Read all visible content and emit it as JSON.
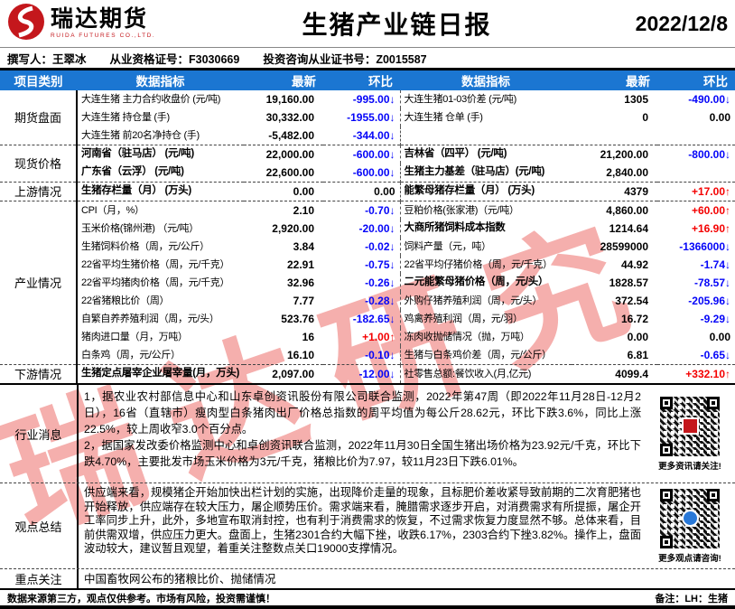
{
  "brand": {
    "name": "瑞达期货",
    "sub": "RUIDA FUTURES CO.,LTD."
  },
  "header": {
    "title": "生猪产业链日报",
    "date": "2022/12/8"
  },
  "author": {
    "writer": "撰写人：王翠冰",
    "cert1": "从业资格证号：F3030669",
    "cert2": "投资咨询从业证书号：Z0015587"
  },
  "watermark": "瑞达研究",
  "colors": {
    "header_blue": "#1B76D2",
    "down_blue": "#0404F8",
    "up_red": "#F40000",
    "brand_red": "#C4171C"
  },
  "table": {
    "headers": {
      "category": "项目类别",
      "indicator": "数据指标",
      "latest": "最新",
      "change": "环比"
    },
    "rows": [
      {
        "cat": {
          "label": "期货盘面",
          "span": 3
        },
        "l": {
          "ind": "大连生猪 主力合约收盘价 (元/吨)",
          "v": "19,160.00",
          "c": "-995.00↓",
          "d": "down"
        },
        "r": {
          "ind": "大连生猪01-03价差 (元/吨)",
          "v": "1305",
          "c": "-490.00↓",
          "d": "down"
        }
      },
      {
        "l": {
          "ind": "大连生猪 持仓量 (手)",
          "v": "30,332.00",
          "c": "-1955.00↓",
          "d": "down"
        },
        "r": {
          "ind": "大连生猪 仓单 (手)",
          "v": "0",
          "c": "0.00",
          "d": "flat"
        }
      },
      {
        "l": {
          "ind": "大连生猪 前20名净持仓 (手)",
          "v": "-5,482.00",
          "c": "-344.00↓",
          "d": "down"
        },
        "r": {
          "ind": "",
          "v": "",
          "c": "",
          "d": "none"
        }
      },
      {
        "cat": {
          "label": "现货价格",
          "span": 2
        },
        "l": {
          "ind": "河南省（驻马店） (元/吨)",
          "v": "22,000.00",
          "c": "-600.00↓",
          "d": "down",
          "b": true
        },
        "r": {
          "ind": "吉林省（四平） (元/吨)",
          "v": "21,200.00",
          "c": "-800.00↓",
          "d": "down",
          "b": true
        }
      },
      {
        "l": {
          "ind": "广东省（云浮） (元/吨)",
          "v": "22,600.00",
          "c": "-600.00↓",
          "d": "down",
          "b": true
        },
        "r": {
          "ind": "生猪主力基差（驻马店）(元/吨)",
          "v": "2,840.00",
          "c": "",
          "d": "none",
          "b": true
        }
      },
      {
        "cat": {
          "label": "上游情况",
          "span": 1
        },
        "l": {
          "ind": "生猪存栏量（月） (万头)",
          "v": "0.00",
          "c": "0.00",
          "d": "flat",
          "b": true
        },
        "r": {
          "ind": "能繁母猪存栏量（月） (万头)",
          "v": "4379",
          "c": "+17.00↑",
          "d": "up",
          "b": true
        }
      },
      {
        "cat": {
          "label": "产业情况",
          "span": 9
        },
        "l": {
          "ind": "CPI（月，%）",
          "v": "2.10",
          "c": "-0.70↓",
          "d": "down"
        },
        "r": {
          "ind": "豆粕价格(张家港)（元/吨）",
          "v": "4,860.00",
          "c": "+60.00↑",
          "d": "up"
        }
      },
      {
        "l": {
          "ind": "玉米价格(锦州港) （元/吨）",
          "v": "2,920.00",
          "c": "-20.00↓",
          "d": "down"
        },
        "r": {
          "ind": "大商所猪饲料成本指数",
          "v": "1214.64",
          "c": "+16.90↑",
          "d": "up",
          "b": true
        }
      },
      {
        "l": {
          "ind": "生猪饲料价格（周，元/公斤）",
          "v": "3.84",
          "c": "-0.02↓",
          "d": "down"
        },
        "r": {
          "ind": "饲料产量（元，吨）",
          "v": "28599000",
          "c": "-1366000↓",
          "d": "down"
        }
      },
      {
        "l": {
          "ind": "22省平均生猪价格（周，元/千克）",
          "v": "22.91",
          "c": "-0.75↓",
          "d": "down"
        },
        "r": {
          "ind": "22省平均仔猪价格（周，元/千克）",
          "v": "44.92",
          "c": "-1.74↓",
          "d": "down"
        }
      },
      {
        "l": {
          "ind": "22省平均猪肉价格（周，元/千克）",
          "v": "32.96",
          "c": "-0.26↓",
          "d": "down"
        },
        "r": {
          "ind": "二元能繁母猪价格（周，元/头）",
          "v": "1828.57",
          "c": "-78.57↓",
          "d": "down",
          "b": true
        }
      },
      {
        "l": {
          "ind": "22省猪粮比价（周）",
          "v": "7.77",
          "c": "-0.28↓",
          "d": "down"
        },
        "r": {
          "ind": "外购仔猪养殖利润（周，元/头）",
          "v": "372.54",
          "c": "-205.96↓",
          "d": "down"
        }
      },
      {
        "l": {
          "ind": "自繁自养养殖利润（周，元/头）",
          "v": "523.76",
          "c": "-182.65↓",
          "d": "down"
        },
        "r": {
          "ind": "鸡禽养殖利润（周，元/羽）",
          "v": "16.72",
          "c": "-9.29↓",
          "d": "down"
        }
      },
      {
        "l": {
          "ind": "猪肉进口量（月，万吨）",
          "v": "16",
          "c": "+1.00↑",
          "d": "up"
        },
        "r": {
          "ind": "冻肉收抛储情况（抛，万吨）",
          "v": "0.00",
          "c": "0.00",
          "d": "flat"
        }
      },
      {
        "l": {
          "ind": "白条鸡（周，元/公斤）",
          "v": "16.10",
          "c": "-0.10↓",
          "d": "down"
        },
        "r": {
          "ind": "生猪与白条鸡价差（周，元/公斤）",
          "v": "6.81",
          "c": "-0.65↓",
          "d": "down"
        }
      },
      {
        "cat": {
          "label": "下游情况",
          "span": 1
        },
        "l": {
          "ind": "生猪定点屠宰企业屠宰量(月，万头)",
          "v": "2,097.00",
          "c": "-12.00↓",
          "d": "down",
          "b": true
        },
        "r": {
          "ind": "社零售总额:餐饮收入(月,亿元)",
          "v": "4099.4",
          "c": "+332.10↑",
          "d": "up"
        }
      }
    ]
  },
  "news": {
    "label": "行业消息",
    "p1": "1，据农业农村部信息中心和山东卓创资讯股份有限公司联合监测，2022年第47周（即2022年11月28日-12月2日），16省（直辖市）瘦肉型白条猪肉出厂价格总指数的周平均值为每公斤28.62元，环比下跌3.6%，同比上涨22.5%，较上周收窄3.0个百分点。",
    "p2": "2，据国家发改委价格监测中心和卓创资讯联合监测，2022年11月30日全国生猪出场价格为23.92元/千克，环比下跌4.70%，主要批发市场玉米价格为3元/千克，猪粮比价为7.97，较11月23日下跌6.01%。",
    "qr_caption": "更多资讯请关注!"
  },
  "opinion": {
    "label": "观点总结",
    "text": "供应端来看，规模猪企开始加快出栏计划的实施，出现降价走量的现象，且标肥价差收紧导致前期的二次育肥猪也开始释放，供应端存在较大压力，屠企顺势压价。需求端来看，腌腊需求逐步开启，对消费需求有所提振，屠企开工率同步上升，此外，多地宣布取消封控，也有利于消费需求的恢复，不过需求恢复力度显然不够。总体来看，目前供需双增，供应压力更大。盘面上，生猪2301合约大幅下挫，收跌6.17%，2303合约下挫3.82%。操作上，盘面波动较大，建议暂且观望，着重关注整数点关口19000支撑情况。",
    "qr_caption": "更多观点请咨询!"
  },
  "focus": {
    "label": "重点关注",
    "text": "中国畜牧网公布的猪粮比价、抛储情况"
  },
  "footer": {
    "disclaimer": "数据来源第三方，观点仅供参考。市场有风险，投资需谨慎！",
    "note": "备注：LH：生猪"
  }
}
